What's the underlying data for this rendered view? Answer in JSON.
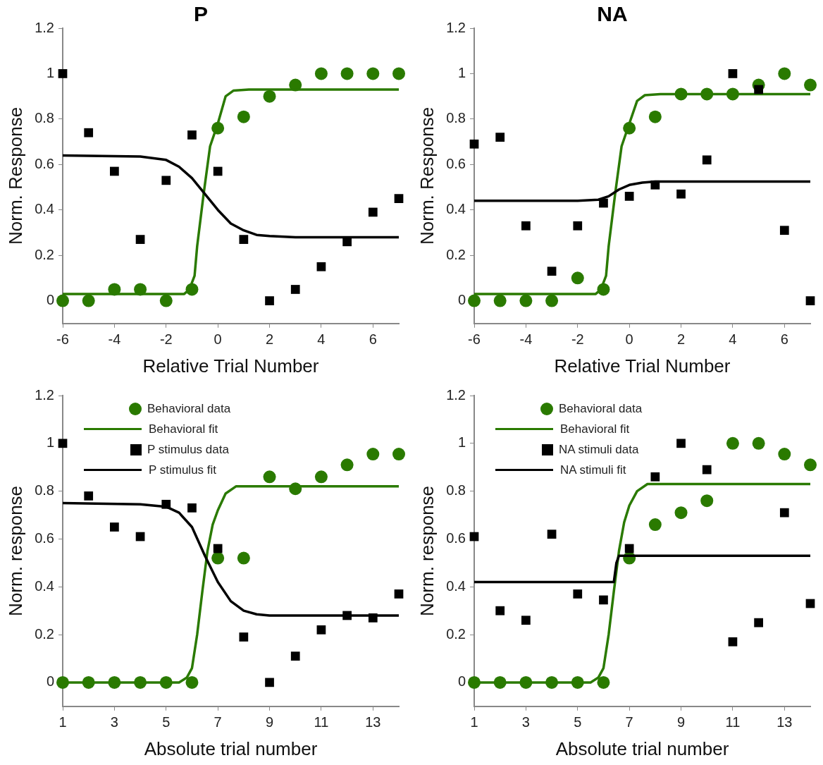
{
  "chart_data": [
    {
      "type": "scatter",
      "title": "P",
      "xlabel": "Relative Trial Number",
      "ylabel": "Norm. Response",
      "xlim": [
        -6,
        7
      ],
      "xticks": [
        -6,
        -4,
        -2,
        0,
        2,
        4,
        6
      ],
      "ylim": [
        -0.1,
        1.2
      ],
      "yticks": [
        0,
        0.2,
        0.4,
        0.6,
        0.8,
        1,
        1.2
      ],
      "grid": false,
      "legend": false,
      "series": [
        {
          "type": "scatter",
          "marker": "circle",
          "color": "#2a7a00",
          "x": [
            -6,
            -5,
            -4,
            -3,
            -2,
            -1,
            0,
            1,
            2,
            3,
            4,
            5,
            6,
            7
          ],
          "values": [
            0,
            0,
            0.05,
            0.05,
            0,
            0.05,
            0.76,
            0.81,
            0.9,
            0.95,
            1,
            1,
            1,
            1
          ]
        },
        {
          "type": "line",
          "marker": "none",
          "line_style": "solid",
          "color": "#2a7a00",
          "x": [
            -6,
            -1.3,
            -1.1,
            -0.9,
            -0.8,
            -0.55,
            -0.3,
            0,
            0.3,
            0.6,
            1.2,
            7
          ],
          "values": [
            0.03,
            0.03,
            0.05,
            0.11,
            0.24,
            0.47,
            0.68,
            0.78,
            0.9,
            0.925,
            0.93,
            0.93
          ]
        },
        {
          "type": "scatter",
          "marker": "square",
          "color": "#000000",
          "x": [
            -6,
            -5,
            -4,
            -3,
            -2,
            -1,
            0,
            1,
            2,
            3,
            4,
            5,
            6,
            7
          ],
          "values": [
            1,
            0.74,
            0.57,
            0.27,
            0.53,
            0.73,
            0.57,
            0.27,
            0,
            0.05,
            0.15,
            0.26,
            0.39,
            0.45
          ]
        },
        {
          "type": "line",
          "marker": "none",
          "line_style": "solid",
          "color": "#000000",
          "x": [
            -6,
            -3,
            -2,
            -1.5,
            -1,
            -0.5,
            0,
            0.5,
            1,
            1.5,
            2,
            3,
            7
          ],
          "values": [
            0.64,
            0.635,
            0.62,
            0.59,
            0.54,
            0.47,
            0.4,
            0.34,
            0.31,
            0.29,
            0.285,
            0.28,
            0.28
          ]
        }
      ]
    },
    {
      "type": "scatter",
      "title": "NA",
      "xlabel": "Relative Trial Number",
      "ylabel": "Norm. Response",
      "xlim": [
        -6,
        7
      ],
      "xticks": [
        -6,
        -4,
        -2,
        0,
        2,
        4,
        6
      ],
      "ylim": [
        -0.1,
        1.2
      ],
      "yticks": [
        0,
        0.2,
        0.4,
        0.6,
        0.8,
        1,
        1.2
      ],
      "grid": false,
      "legend": false,
      "series": [
        {
          "type": "scatter",
          "marker": "circle",
          "color": "#2a7a00",
          "x": [
            -6,
            -5,
            -4,
            -3,
            -2,
            -1,
            0,
            1,
            2,
            3,
            4,
            5,
            6,
            7
          ],
          "values": [
            0,
            0,
            0,
            0,
            0.1,
            0.05,
            0.76,
            0.81,
            0.91,
            0.91,
            0.91,
            0.95,
            1,
            0.95
          ]
        },
        {
          "type": "line",
          "marker": "none",
          "line_style": "solid",
          "color": "#2a7a00",
          "x": [
            -6,
            -1.3,
            -1.1,
            -0.9,
            -0.8,
            -0.55,
            -0.3,
            0,
            0.3,
            0.6,
            1.2,
            7
          ],
          "values": [
            0.03,
            0.03,
            0.05,
            0.11,
            0.24,
            0.47,
            0.68,
            0.78,
            0.88,
            0.905,
            0.91,
            0.91
          ]
        },
        {
          "type": "scatter",
          "marker": "square",
          "color": "#000000",
          "x": [
            -6,
            -5,
            -4,
            -3,
            -2,
            -1,
            0,
            1,
            2,
            3,
            4,
            5,
            6,
            7
          ],
          "values": [
            0.69,
            0.72,
            0.33,
            0.13,
            0.33,
            0.43,
            0.46,
            0.51,
            0.47,
            0.62,
            1,
            0.93,
            0.31,
            0
          ]
        },
        {
          "type": "line",
          "marker": "none",
          "line_style": "solid",
          "color": "#000000",
          "x": [
            -6,
            -2,
            -1.2,
            -0.8,
            -0.4,
            0,
            0.5,
            1,
            7
          ],
          "values": [
            0.44,
            0.44,
            0.445,
            0.46,
            0.49,
            0.51,
            0.52,
            0.525,
            0.525
          ]
        }
      ]
    },
    {
      "type": "scatter",
      "xlabel": "Absolute trial number",
      "ylabel": "Norm. response",
      "xlim": [
        1,
        14
      ],
      "xticks": [
        1,
        3,
        5,
        7,
        9,
        11,
        13
      ],
      "ylim": [
        -0.1,
        1.2
      ],
      "yticks": [
        0,
        0.2,
        0.4,
        0.6,
        0.8,
        1,
        1.2
      ],
      "grid": false,
      "legend": "top left",
      "series": [
        {
          "type": "scatter",
          "name": "Behavioral data",
          "marker": "circle",
          "color": "#2a7a00",
          "x": [
            1,
            2,
            3,
            4,
            5,
            6,
            7,
            8,
            9,
            10,
            11,
            12,
            13,
            14
          ],
          "values": [
            0,
            0,
            0,
            0,
            0,
            0,
            0.52,
            0.52,
            0.86,
            0.81,
            0.86,
            0.91,
            0.955,
            0.955
          ]
        },
        {
          "type": "line",
          "name": "Behavioral fit",
          "marker": "none",
          "line_style": "solid",
          "color": "#2a7a00",
          "x": [
            1,
            5.5,
            5.8,
            6,
            6.2,
            6.4,
            6.6,
            6.8,
            7,
            7.3,
            7.7,
            14
          ],
          "values": [
            0,
            0,
            0.02,
            0.06,
            0.2,
            0.38,
            0.55,
            0.66,
            0.72,
            0.79,
            0.82,
            0.82
          ]
        },
        {
          "type": "scatter",
          "name": "P stimulus data",
          "marker": "square",
          "color": "#000000",
          "x": [
            1,
            2,
            3,
            4,
            5,
            6,
            7,
            8,
            9,
            10,
            11,
            12,
            13,
            14
          ],
          "values": [
            1,
            0.78,
            0.65,
            0.61,
            0.745,
            0.73,
            0.56,
            0.19,
            0,
            0.11,
            0.22,
            0.28,
            0.27,
            0.37
          ]
        },
        {
          "type": "line",
          "name": "P stimulus fit",
          "marker": "none",
          "line_style": "solid",
          "color": "#000000",
          "x": [
            1,
            4,
            5,
            5.5,
            6,
            6.5,
            7,
            7.5,
            8,
            8.5,
            9,
            14
          ],
          "values": [
            0.75,
            0.745,
            0.735,
            0.71,
            0.65,
            0.53,
            0.42,
            0.34,
            0.3,
            0.285,
            0.28,
            0.28
          ]
        }
      ]
    },
    {
      "type": "scatter",
      "xlabel": "Absolute trial number",
      "ylabel": "Norm. response",
      "xlim": [
        1,
        14
      ],
      "xticks": [
        1,
        3,
        5,
        7,
        9,
        11,
        13
      ],
      "ylim": [
        -0.1,
        1.2
      ],
      "yticks": [
        0,
        0.2,
        0.4,
        0.6,
        0.8,
        1,
        1.2
      ],
      "grid": false,
      "legend": "top left",
      "series": [
        {
          "type": "scatter",
          "name": "Behavioral data",
          "marker": "circle",
          "color": "#2a7a00",
          "x": [
            1,
            2,
            3,
            4,
            5,
            6,
            7,
            8,
            9,
            10,
            11,
            12,
            13,
            14
          ],
          "values": [
            0,
            0,
            0,
            0,
            0,
            0,
            0.52,
            0.66,
            0.71,
            0.76,
            1,
            1,
            0.955,
            0.91
          ]
        },
        {
          "type": "line",
          "name": "Behavioral fit",
          "marker": "none",
          "line_style": "solid",
          "color": "#2a7a00",
          "x": [
            1,
            5.5,
            5.8,
            6,
            6.2,
            6.4,
            6.6,
            6.8,
            7,
            7.3,
            7.7,
            14
          ],
          "values": [
            0,
            0,
            0.02,
            0.06,
            0.2,
            0.38,
            0.55,
            0.67,
            0.74,
            0.8,
            0.83,
            0.83
          ]
        },
        {
          "type": "scatter",
          "name": "NA stimuli data",
          "marker": "square",
          "color": "#000000",
          "x": [
            1,
            2,
            3,
            4,
            5,
            6,
            7,
            8,
            9,
            10,
            11,
            12,
            13,
            14
          ],
          "values": [
            0.61,
            0.3,
            0.26,
            0.62,
            0.37,
            0.345,
            0.56,
            0.86,
            1,
            0.89,
            0.17,
            0.25,
            0.71,
            0.33
          ]
        },
        {
          "type": "line",
          "name": "NA stimuli fit",
          "marker": "none",
          "line_style": "solid",
          "color": "#000000",
          "x": [
            1,
            6.4,
            6.5,
            6.6,
            14
          ],
          "values": [
            0.42,
            0.42,
            0.5,
            0.53,
            0.53
          ]
        }
      ]
    }
  ]
}
